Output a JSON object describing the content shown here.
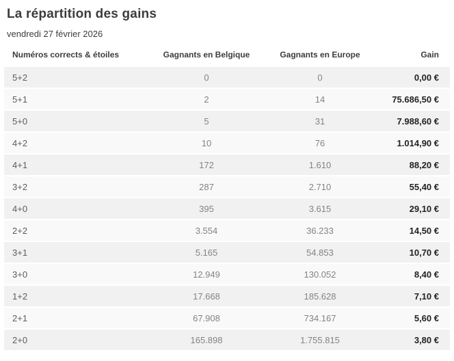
{
  "page": {
    "title": "La répartition des gains",
    "date": "vendredi 27 février 2026"
  },
  "table": {
    "headers": [
      "Numéros corrects & étoiles",
      "Gagnants en Belgique",
      "Gagnants en Europe",
      "Gain"
    ],
    "rows": [
      {
        "combo": "5+2",
        "belgium": "0",
        "europe": "0",
        "gain": "0,00 €"
      },
      {
        "combo": "5+1",
        "belgium": "2",
        "europe": "14",
        "gain": "75.686,50 €"
      },
      {
        "combo": "5+0",
        "belgium": "5",
        "europe": "31",
        "gain": "7.988,60 €"
      },
      {
        "combo": "4+2",
        "belgium": "10",
        "europe": "76",
        "gain": "1.014,90 €"
      },
      {
        "combo": "4+1",
        "belgium": "172",
        "europe": "1.610",
        "gain": "88,20 €"
      },
      {
        "combo": "3+2",
        "belgium": "287",
        "europe": "2.710",
        "gain": "55,40 €"
      },
      {
        "combo": "4+0",
        "belgium": "395",
        "europe": "3.615",
        "gain": "29,10 €"
      },
      {
        "combo": "2+2",
        "belgium": "3.554",
        "europe": "36.233",
        "gain": "14,50 €"
      },
      {
        "combo": "3+1",
        "belgium": "5.165",
        "europe": "54.853",
        "gain": "10,70 €"
      },
      {
        "combo": "3+0",
        "belgium": "12.949",
        "europe": "130.052",
        "gain": "8,40 €"
      },
      {
        "combo": "1+2",
        "belgium": "17.668",
        "europe": "185.628",
        "gain": "7,10 €"
      },
      {
        "combo": "2+1",
        "belgium": "67.908",
        "europe": "734.167",
        "gain": "5,60 €"
      },
      {
        "combo": "2+0",
        "belgium": "165.898",
        "europe": "1.755.815",
        "gain": "3,80 €"
      }
    ]
  },
  "colors": {
    "title_text": "#3c3c3c",
    "row_stripe_dark": "#f1f1f1",
    "row_stripe_light": "#f9f9f9",
    "gain_text": "#222222",
    "winners_text": "#838383",
    "bottom_bar": "#1d3160"
  }
}
